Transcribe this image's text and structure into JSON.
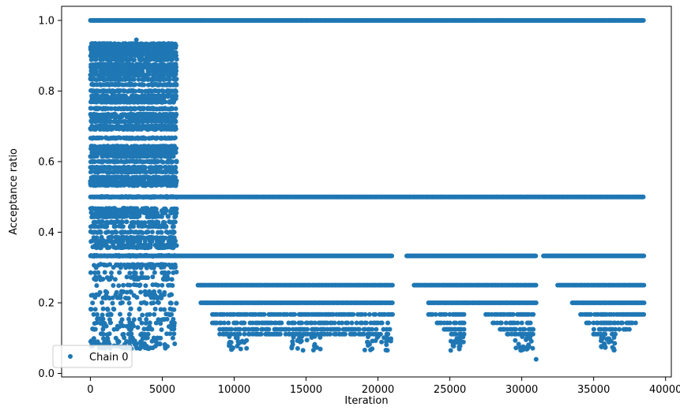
{
  "chart_data": {
    "type": "scatter",
    "title": "",
    "xlabel": "Iteration",
    "ylabel": "Acceptance ratio",
    "xlim": [
      -2000,
      40400
    ],
    "ylim": [
      -0.01,
      1.04
    ],
    "xticks": [
      0,
      5000,
      10000,
      15000,
      20000,
      25000,
      30000,
      35000,
      40000
    ],
    "xtick_labels": [
      "0",
      "5000",
      "10000",
      "15000",
      "20000",
      "25000",
      "30000",
      "35000",
      "40000"
    ],
    "yticks": [
      0.0,
      0.2,
      0.4,
      0.6,
      0.8,
      1.0
    ],
    "ytick_labels": [
      "0.0",
      "0.2",
      "0.4",
      "0.6",
      "0.8",
      "1.0"
    ],
    "grid": false,
    "legend": {
      "position": "lower-left"
    },
    "series": [
      {
        "name": "Chain 0",
        "color": "#1f77b4",
        "marker": "circle",
        "bands": [
          {
            "y": 1.0,
            "x_ranges": [
              [
                0,
                38500
              ]
            ]
          },
          {
            "y": 0.5,
            "x_ranges": [
              [
                0,
                38500
              ]
            ]
          },
          {
            "y": 0.333,
            "x_ranges": [
              [
                0,
                21000
              ],
              [
                22000,
                31000
              ],
              [
                31500,
                38500
              ]
            ]
          },
          {
            "y": 0.25,
            "x_ranges": [
              [
                7500,
                21000
              ],
              [
                22500,
                31000
              ],
              [
                32500,
                38500
              ]
            ]
          },
          {
            "y": 0.2,
            "x_ranges": [
              [
                7700,
                21000
              ],
              [
                23500,
                31000
              ],
              [
                33500,
                38500
              ]
            ]
          },
          {
            "y": 0.167,
            "x_ranges": [
              [
                8500,
                21000
              ],
              [
                23500,
                26000
              ],
              [
                27500,
                31000
              ],
              [
                34000,
                38500
              ]
            ]
          },
          {
            "y": 0.143,
            "x_ranges": [
              [
                8500,
                20800
              ],
              [
                24000,
                26000
              ],
              [
                28000,
                31000
              ],
              [
                34500,
                38000
              ]
            ]
          },
          {
            "y": 0.125,
            "x_ranges": [
              [
                8800,
                20800
              ],
              [
                24500,
                26000
              ],
              [
                28500,
                30800
              ],
              [
                35000,
                37500
              ]
            ]
          },
          {
            "y": 0.111,
            "x_ranges": [
              [
                9000,
                20700
              ],
              [
                25000,
                26000
              ],
              [
                29000,
                30800
              ],
              [
                35000,
                36500
              ]
            ]
          }
        ],
        "early_region": {
          "x_range": [
            0,
            6000
          ],
          "y_range": [
            0.07,
            0.95
          ]
        },
        "outliers": [
          {
            "x": 31000,
            "y": 0.04
          },
          {
            "x": 500,
            "y": 0.09
          },
          {
            "x": 3300,
            "y": 0.13
          },
          {
            "x": 3200,
            "y": 0.945
          }
        ]
      }
    ]
  }
}
